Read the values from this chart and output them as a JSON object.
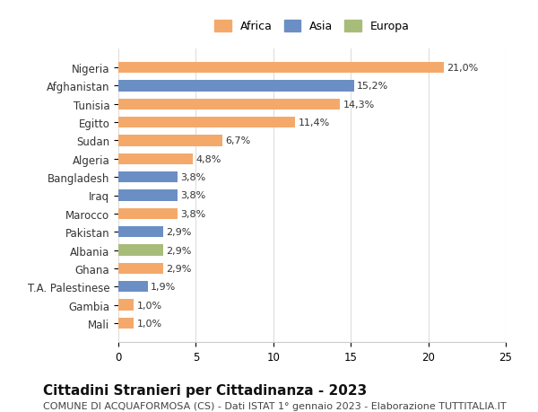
{
  "categories": [
    "Mali",
    "Gambia",
    "T.A. Palestinese",
    "Ghana",
    "Albania",
    "Pakistan",
    "Marocco",
    "Iraq",
    "Bangladesh",
    "Algeria",
    "Sudan",
    "Egitto",
    "Tunisia",
    "Afghanistan",
    "Nigeria"
  ],
  "values": [
    1.0,
    1.0,
    1.9,
    2.9,
    2.9,
    2.9,
    3.8,
    3.8,
    3.8,
    4.8,
    6.7,
    11.4,
    14.3,
    15.2,
    21.0
  ],
  "labels": [
    "1,0%",
    "1,0%",
    "1,9%",
    "2,9%",
    "2,9%",
    "2,9%",
    "3,8%",
    "3,8%",
    "3,8%",
    "4,8%",
    "6,7%",
    "11,4%",
    "14,3%",
    "15,2%",
    "21,0%"
  ],
  "continents": [
    "Africa",
    "Africa",
    "Asia",
    "Africa",
    "Europa",
    "Asia",
    "Africa",
    "Asia",
    "Asia",
    "Africa",
    "Africa",
    "Africa",
    "Africa",
    "Asia",
    "Africa"
  ],
  "colors": {
    "Africa": "#F4A96B",
    "Asia": "#6B8EC4",
    "Europa": "#A8BC7A"
  },
  "legend_labels": [
    "Africa",
    "Asia",
    "Europa"
  ],
  "title": "Cittadini Stranieri per Cittadinanza - 2023",
  "subtitle": "COMUNE DI ACQUAFORMOSA (CS) - Dati ISTAT 1° gennaio 2023 - Elaborazione TUTTITALIA.IT",
  "xlim": [
    0,
    25
  ],
  "xticks": [
    0,
    5,
    10,
    15,
    20,
    25
  ],
  "background_color": "#ffffff",
  "bar_height": 0.6,
  "title_fontsize": 11,
  "subtitle_fontsize": 8,
  "label_fontsize": 8,
  "tick_fontsize": 8.5,
  "legend_fontsize": 9
}
